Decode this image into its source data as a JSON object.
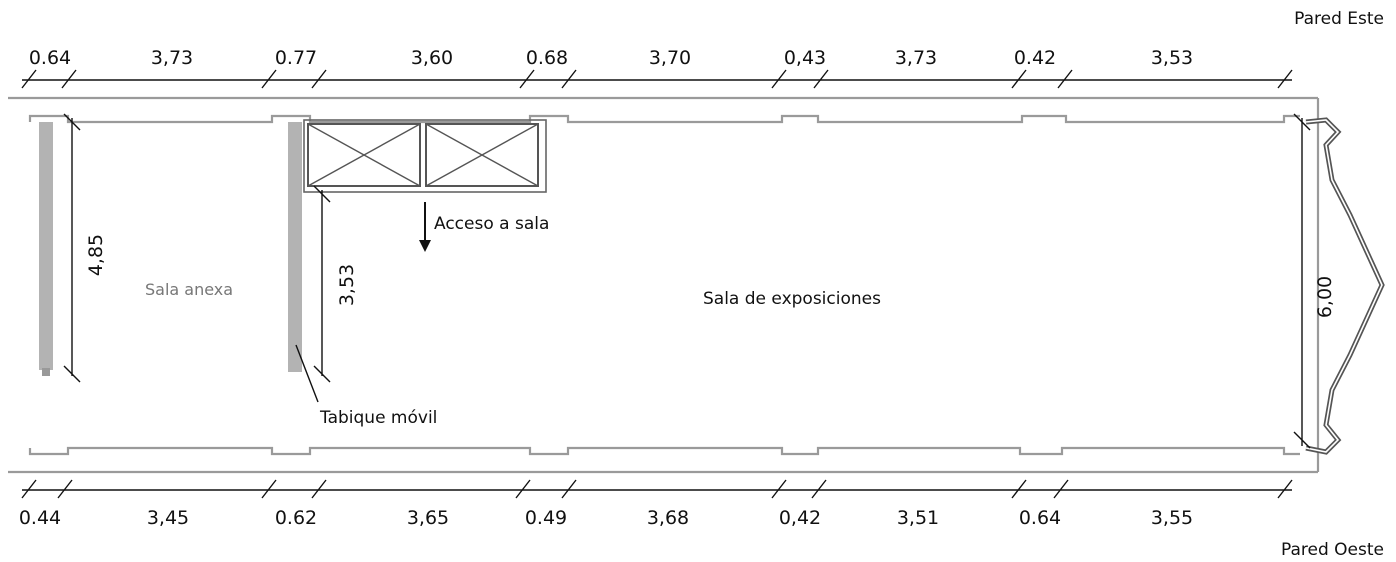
{
  "walls": {
    "east": "Pared Este",
    "west": "Pared Oeste"
  },
  "top_dims": [
    "0.64",
    "3,73",
    "0.77",
    "3,60",
    "0.68",
    "3,70",
    "0,43",
    "3,73",
    "0.42",
    "3,53"
  ],
  "bottom_dims": [
    "0.44",
    "3,45",
    "0.62",
    "3,65",
    "0.49",
    "3,68",
    "0,42",
    "3,51",
    "0.64",
    "3,55"
  ],
  "vertical_dims": {
    "annex": "4,85",
    "partition": "3,53",
    "end": "6,00"
  },
  "rooms": {
    "annex": "Sala anexa",
    "main": "Sala de exposiciones"
  },
  "labels": {
    "access": "Acceso a sala",
    "partition": "Tabique móvil"
  }
}
